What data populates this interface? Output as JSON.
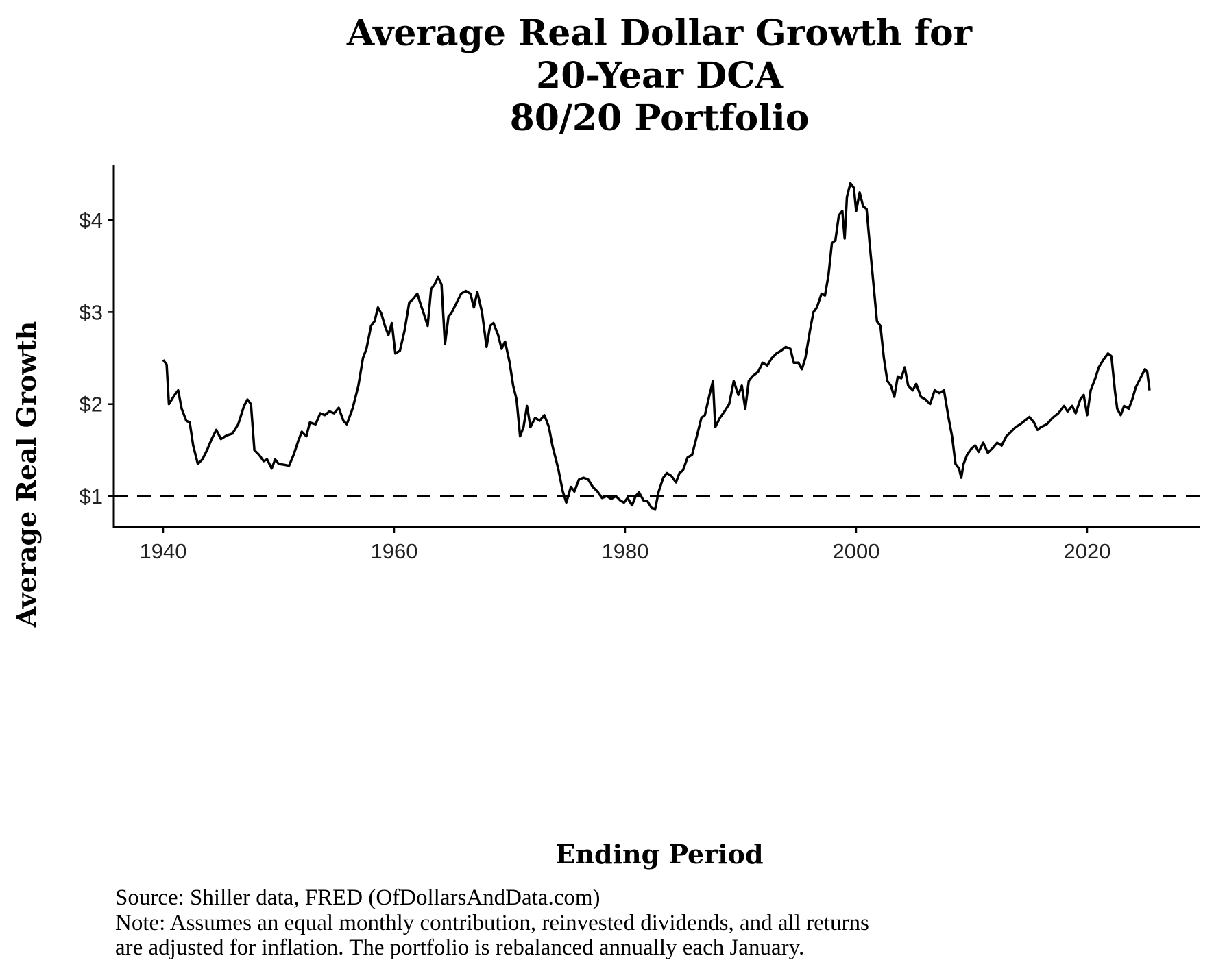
{
  "chart_data": {
    "type": "line",
    "title": [
      "Average Real Dollar Growth for",
      "20-Year DCA",
      "80/20 Portfolio"
    ],
    "xlabel": "Ending Period",
    "ylabel": "Average Real Growth",
    "xlim": [
      1937,
      2030
    ],
    "ylim": [
      0.665,
      4.6
    ],
    "x_ticks": [
      1940,
      1960,
      1980,
      2000,
      2020
    ],
    "x_tick_labels": [
      "1940",
      "1960",
      "1980",
      "2000",
      "2020"
    ],
    "y_ticks": [
      1,
      2,
      3,
      4
    ],
    "y_tick_labels": [
      "$1",
      "$2",
      "$3",
      "$4"
    ],
    "reference_line": {
      "y": 1,
      "style": "dashed"
    },
    "grid": false,
    "line_color": "#000000",
    "series": [
      {
        "x": [
          1940.0,
          1940.3,
          1940.5,
          1941,
          1941.3,
          1941.6,
          1942,
          1942.3,
          1942.6,
          1943,
          1943.4,
          1943.8,
          1944.2,
          1944.6,
          1945,
          1945.5,
          1946,
          1946.5,
          1947,
          1947.3,
          1947.6,
          1947.9,
          1948.3,
          1948.7,
          1949,
          1949.4,
          1949.7,
          1950,
          1950.5,
          1950.9,
          1951.3,
          1951.7,
          1952,
          1952.4,
          1952.7,
          1953.2,
          1953.6,
          1954,
          1954.4,
          1954.8,
          1955.2,
          1955.6,
          1955.9,
          1956.4,
          1956.9,
          1957.3,
          1957.6,
          1958,
          1958.3,
          1958.6,
          1958.9,
          1959.2,
          1959.5,
          1959.8,
          1960.1,
          1960.5,
          1960.9,
          1961.3,
          1961.7,
          1962,
          1962.3,
          1962.6,
          1962.9,
          1963.2,
          1963.5,
          1963.8,
          1964.1,
          1964.4,
          1964.7,
          1965,
          1965.4,
          1965.8,
          1966.2,
          1966.6,
          1966.9,
          1967.2,
          1967.6,
          1968,
          1968.3,
          1968.6,
          1969,
          1969.3,
          1969.6,
          1970,
          1970.3,
          1970.6,
          1970.9,
          1971.2,
          1971.5,
          1971.8,
          1972.2,
          1972.6,
          1973,
          1973.4,
          1973.7,
          1974.2,
          1974.6,
          1974.9,
          1975.3,
          1975.6,
          1976,
          1976.4,
          1976.8,
          1977.2,
          1977.6,
          1978,
          1978.4,
          1978.8,
          1979.2,
          1979.6,
          1979.9,
          1980.2,
          1980.6,
          1980.9,
          1981.2,
          1981.6,
          1981.9,
          1982.3,
          1982.6,
          1982.9,
          1983.3,
          1983.6,
          1984,
          1984.4,
          1984.7,
          1985,
          1985.4,
          1985.8,
          1986.2,
          1986.6,
          1986.9,
          1987.3,
          1987.6,
          1987.8,
          1988.2,
          1988.6,
          1989,
          1989.4,
          1989.8,
          1990.1,
          1990.4,
          1990.7,
          1991,
          1991.5,
          1991.9,
          1992.3,
          1992.7,
          1993.1,
          1993.5,
          1993.9,
          1994.3,
          1994.6,
          1995,
          1995.3,
          1995.6,
          1996,
          1996.3,
          1996.6,
          1997,
          1997.3,
          1997.6,
          1997.9,
          1998.2,
          1998.5,
          1998.8,
          1999,
          1999.2,
          1999.5,
          1999.8,
          2000,
          2000.3,
          2000.6,
          2000.9,
          2001.2,
          2001.5,
          2001.8,
          2002.1,
          2002.4,
          2002.7,
          2003,
          2003.3,
          2003.6,
          2003.9,
          2004.2,
          2004.5,
          2004.9,
          2005.2,
          2005.6,
          2006,
          2006.4,
          2006.8,
          2007.2,
          2007.6,
          2008,
          2008.3,
          2008.6,
          2008.9,
          2009.1,
          2009.3,
          2009.6,
          2010,
          2010.3,
          2010.6,
          2011,
          2011.4,
          2011.8,
          2012.2,
          2012.6,
          2013,
          2013.4,
          2013.8,
          2014.2,
          2014.6,
          2015,
          2015.4,
          2015.7,
          2016,
          2016.5,
          2017,
          2017.5,
          2018,
          2018.3,
          2018.7,
          2019,
          2019.4,
          2019.7,
          2020,
          2020.3,
          2020.7,
          2021,
          2021.4,
          2021.8,
          2022.1,
          2022.4,
          2022.6,
          2022.9,
          2023.2,
          2023.6,
          2023.9,
          2024.2,
          2024.6,
          2025,
          2025.2,
          2025.4
        ],
        "y": [
          2.48,
          2.43,
          2.0,
          2.1,
          2.15,
          1.95,
          1.82,
          1.8,
          1.55,
          1.35,
          1.4,
          1.5,
          1.62,
          1.72,
          1.62,
          1.66,
          1.68,
          1.78,
          1.98,
          2.05,
          2.0,
          1.5,
          1.45,
          1.38,
          1.4,
          1.3,
          1.4,
          1.35,
          1.34,
          1.33,
          1.45,
          1.6,
          1.7,
          1.65,
          1.8,
          1.78,
          1.9,
          1.88,
          1.92,
          1.9,
          1.96,
          1.82,
          1.78,
          1.95,
          2.2,
          2.5,
          2.6,
          2.85,
          2.9,
          3.05,
          2.98,
          2.85,
          2.75,
          2.88,
          2.55,
          2.58,
          2.8,
          3.1,
          3.15,
          3.2,
          3.08,
          2.97,
          2.85,
          3.25,
          3.3,
          3.38,
          3.3,
          2.65,
          2.95,
          3.0,
          3.1,
          3.2,
          3.23,
          3.2,
          3.05,
          3.22,
          3.0,
          2.62,
          2.85,
          2.88,
          2.75,
          2.6,
          2.68,
          2.45,
          2.2,
          2.05,
          1.65,
          1.75,
          1.98,
          1.75,
          1.85,
          1.82,
          1.88,
          1.75,
          1.55,
          1.3,
          1.05,
          0.93,
          1.1,
          1.05,
          1.18,
          1.2,
          1.18,
          1.1,
          1.05,
          0.98,
          1.0,
          0.97,
          1.0,
          0.95,
          0.93,
          0.98,
          0.9,
          1.0,
          1.04,
          0.95,
          0.95,
          0.87,
          0.86,
          1.05,
          1.2,
          1.25,
          1.22,
          1.15,
          1.25,
          1.28,
          1.42,
          1.45,
          1.65,
          1.85,
          1.88,
          2.1,
          2.25,
          1.75,
          1.85,
          1.92,
          2.0,
          2.25,
          2.1,
          2.2,
          1.95,
          2.25,
          2.3,
          2.35,
          2.45,
          2.42,
          2.5,
          2.55,
          2.58,
          2.62,
          2.6,
          2.45,
          2.45,
          2.38,
          2.5,
          2.8,
          3.0,
          3.05,
          3.2,
          3.18,
          3.4,
          3.75,
          3.78,
          4.05,
          4.1,
          3.8,
          4.25,
          4.4,
          4.35,
          4.1,
          4.3,
          4.15,
          4.12,
          3.7,
          3.3,
          2.9,
          2.85,
          2.5,
          2.25,
          2.2,
          2.08,
          2.3,
          2.28,
          2.4,
          2.2,
          2.15,
          2.22,
          2.08,
          2.05,
          2.0,
          2.15,
          2.12,
          2.15,
          1.85,
          1.65,
          1.35,
          1.3,
          1.2,
          1.35,
          1.45,
          1.52,
          1.55,
          1.48,
          1.58,
          1.47,
          1.52,
          1.58,
          1.55,
          1.65,
          1.7,
          1.75,
          1.78,
          1.82,
          1.86,
          1.8,
          1.72,
          1.75,
          1.78,
          1.85,
          1.9,
          1.98,
          1.92,
          1.98,
          1.9,
          2.05,
          2.1,
          1.88,
          2.15,
          2.28,
          2.4,
          2.48,
          2.55,
          2.52,
          2.15,
          1.95,
          1.88,
          1.98,
          1.95,
          2.05,
          2.18,
          2.28,
          2.38,
          2.35,
          2.15
        ]
      }
    ]
  },
  "source": "Source:  Shiller data, FRED (OfDollarsAndData.com)",
  "note_line1": "Note: Assumes an equal monthly contribution, reinvested dividends, and all returns",
  "note_line2": "are adjusted for inflation. The portfolio is rebalanced annually each January."
}
